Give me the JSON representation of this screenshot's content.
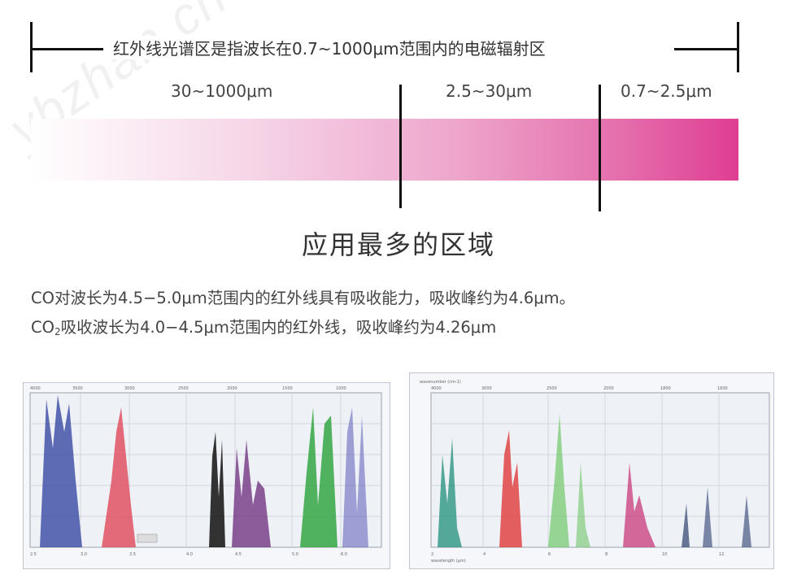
{
  "header": {
    "title": "红外线光谱区是指波长在0.7~1000μm范围内的电磁辐射区"
  },
  "ranges": [
    {
      "label": "30~1000μm"
    },
    {
      "label": "2.5~30μm"
    },
    {
      "label": "0.7~2.5μm"
    }
  ],
  "center_title": "应用最多的区域",
  "description": {
    "line1": "CO对波长为4.5−5.0μm范围内的红外线具有吸收能力，吸收峰约为4.6μm。",
    "line2_prefix": "CO",
    "line2_sub": "2",
    "line2_suffix": "吸收波长为4.0−4.5μm范围内的红外线，吸收峰约为4.26μm"
  },
  "colors": {
    "bar_start": "#ffffff",
    "bar_end": "#df3d92",
    "accent_text": "#333333"
  },
  "watermark": "ybzhan.cn"
}
